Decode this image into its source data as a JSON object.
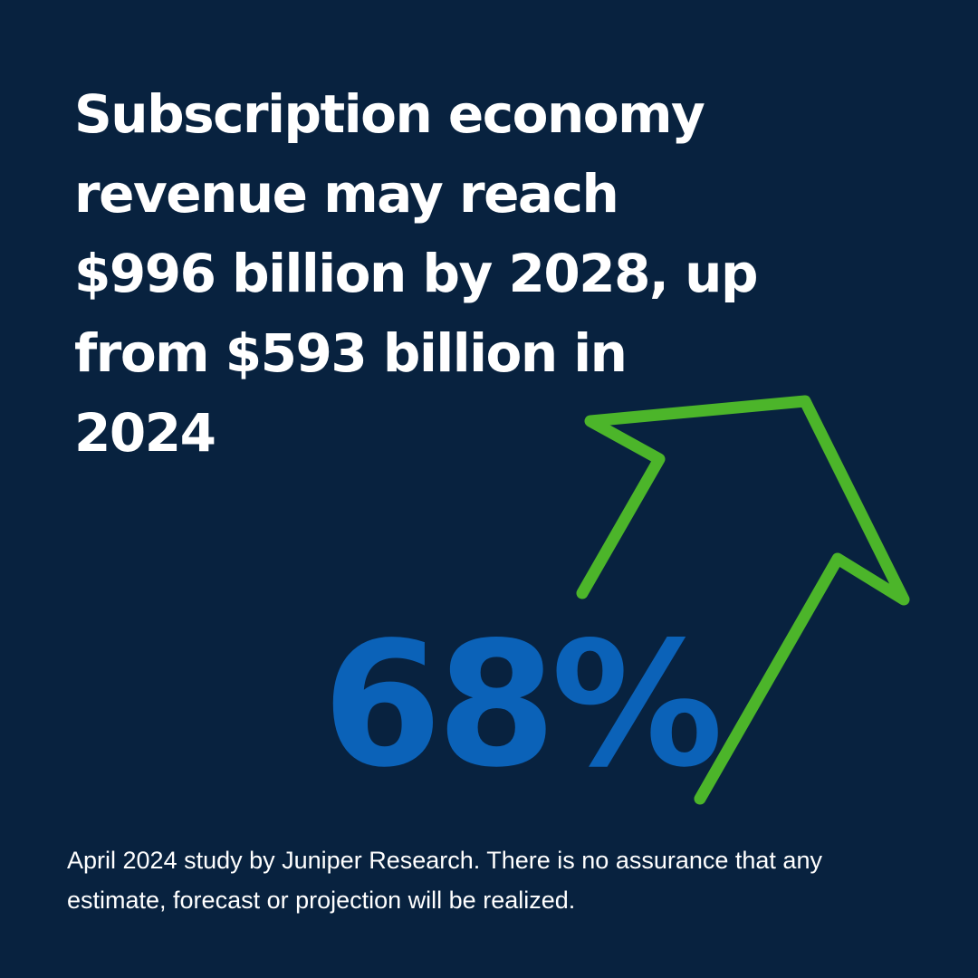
{
  "colors": {
    "background": "#08223f",
    "headline_text": "#ffffff",
    "stat_blue": "#0b62b8",
    "arrow_green": "#4cb52a",
    "footnote_text": "#ffffff"
  },
  "headline": {
    "lines": [
      "Subscription economy",
      "revenue may reach",
      "$996 billion by 2028, up",
      "from $593 billion in",
      "2024"
    ]
  },
  "stat": {
    "value": "68%",
    "icon": "upward-arrow-icon"
  },
  "footnote": {
    "text": " April 2024 study by Juniper Research. There is no assurance that any estimate, forecast or projection will be realized."
  }
}
